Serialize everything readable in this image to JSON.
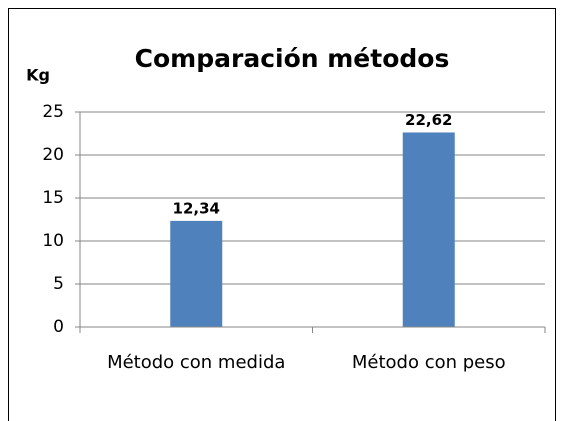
{
  "chart_data": {
    "type": "bar",
    "title": "Comparación métodos",
    "y_label": "Kg",
    "categories": [
      "Método con medida",
      "Método con peso"
    ],
    "values": [
      12.34,
      22.62
    ],
    "value_labels": [
      "12,34",
      "22,62"
    ],
    "color": "#4f81bd",
    "ylim": [
      0,
      25
    ],
    "yticks": [
      0,
      5,
      10,
      15,
      20,
      25
    ],
    "grid": true
  }
}
